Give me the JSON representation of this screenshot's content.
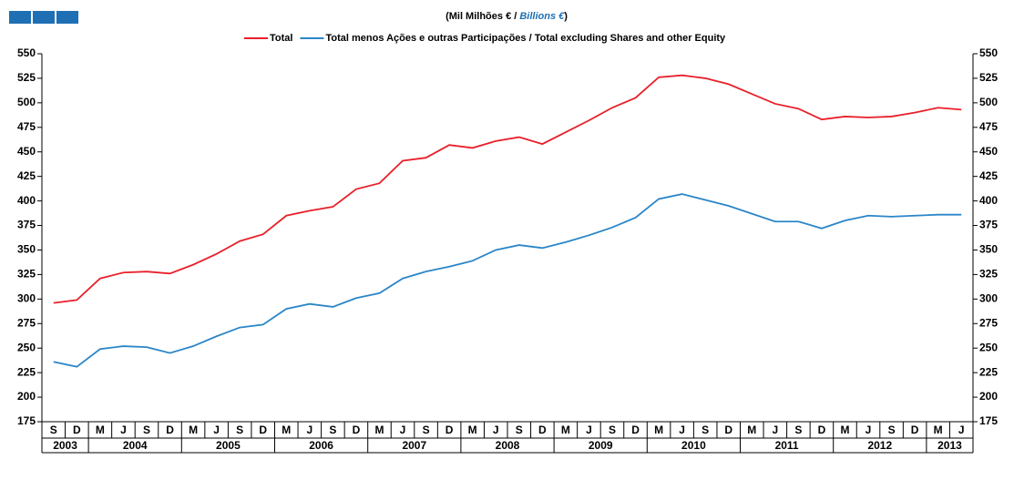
{
  "chart_data": {
    "type": "line",
    "title": [
      "(Mil Milhões € / ",
      "Billions €",
      ")"
    ],
    "categories": [
      {
        "month": "S",
        "year": "2003"
      },
      {
        "month": "D",
        "year": "2003"
      },
      {
        "month": "M",
        "year": "2004"
      },
      {
        "month": "J",
        "year": "2004"
      },
      {
        "month": "S",
        "year": "2004"
      },
      {
        "month": "D",
        "year": "2004"
      },
      {
        "month": "M",
        "year": "2005"
      },
      {
        "month": "J",
        "year": "2005"
      },
      {
        "month": "S",
        "year": "2005"
      },
      {
        "month": "D",
        "year": "2005"
      },
      {
        "month": "M",
        "year": "2006"
      },
      {
        "month": "J",
        "year": "2006"
      },
      {
        "month": "S",
        "year": "2006"
      },
      {
        "month": "D",
        "year": "2006"
      },
      {
        "month": "M",
        "year": "2007"
      },
      {
        "month": "J",
        "year": "2007"
      },
      {
        "month": "S",
        "year": "2007"
      },
      {
        "month": "D",
        "year": "2007"
      },
      {
        "month": "M",
        "year": "2008"
      },
      {
        "month": "J",
        "year": "2008"
      },
      {
        "month": "S",
        "year": "2008"
      },
      {
        "month": "D",
        "year": "2008"
      },
      {
        "month": "M",
        "year": "2009"
      },
      {
        "month": "J",
        "year": "2009"
      },
      {
        "month": "S",
        "year": "2009"
      },
      {
        "month": "D",
        "year": "2009"
      },
      {
        "month": "M",
        "year": "2010"
      },
      {
        "month": "J",
        "year": "2010"
      },
      {
        "month": "S",
        "year": "2010"
      },
      {
        "month": "D",
        "year": "2010"
      },
      {
        "month": "M",
        "year": "2011"
      },
      {
        "month": "J",
        "year": "2011"
      },
      {
        "month": "S",
        "year": "2011"
      },
      {
        "month": "D",
        "year": "2011"
      },
      {
        "month": "M",
        "year": "2012"
      },
      {
        "month": "J",
        "year": "2012"
      },
      {
        "month": "S",
        "year": "2012"
      },
      {
        "month": "D",
        "year": "2012"
      },
      {
        "month": "M",
        "year": "2013"
      },
      {
        "month": "J",
        "year": "2013"
      }
    ],
    "series": [
      {
        "name": "Total",
        "color": "#e8202a",
        "values": [
          296,
          299,
          321,
          327,
          328,
          326,
          335,
          346,
          359,
          366,
          385,
          390,
          394,
          412,
          418,
          441,
          444,
          457,
          454,
          461,
          465,
          458,
          470,
          482,
          495,
          505,
          526,
          528,
          525,
          519,
          509,
          499,
          494,
          483,
          486,
          485,
          486,
          490,
          495,
          493
        ]
      },
      {
        "name": "Total menos Ações e outras Participações / Total excluding Shares and other Equity",
        "color": "#2a86c8",
        "values": [
          236,
          231,
          249,
          252,
          251,
          245,
          252,
          262,
          271,
          274,
          290,
          295,
          292,
          301,
          306,
          321,
          328,
          333,
          339,
          350,
          355,
          352,
          358,
          365,
          373,
          383,
          402,
          407,
          401,
          395,
          387,
          379,
          379,
          372,
          380,
          385,
          384,
          385,
          386,
          386
        ]
      }
    ],
    "ylim": [
      175,
      550
    ],
    "yticks": [
      175,
      200,
      225,
      250,
      275,
      300,
      325,
      350,
      375,
      400,
      425,
      450,
      475,
      500,
      525,
      550
    ]
  }
}
